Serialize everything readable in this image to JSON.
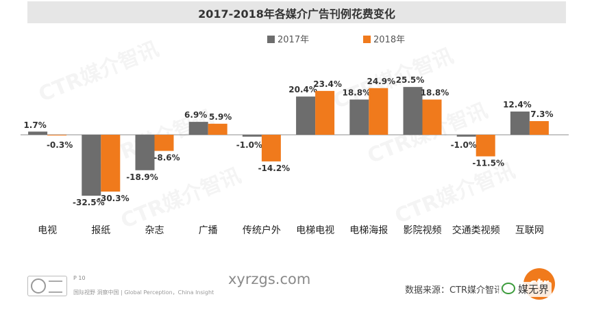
{
  "chart_data": {
    "type": "bar",
    "title": "2017-2018年各媒介广告刊例花费变化",
    "categories": [
      "电视",
      "报纸",
      "杂志",
      "广播",
      "传统户外",
      "电梯电视",
      "电梯海报",
      "影院视频",
      "交通类视频",
      "互联网"
    ],
    "series": [
      {
        "name": "2017年",
        "values": [
          1.7,
          -32.5,
          -18.9,
          6.9,
          -1.0,
          20.4,
          18.8,
          25.5,
          -1.0,
          12.4
        ]
      },
      {
        "name": "2018年",
        "values": [
          -0.3,
          -30.3,
          -8.6,
          5.9,
          -14.2,
          23.4,
          24.9,
          18.8,
          -11.5,
          7.3
        ]
      }
    ],
    "data_labels": [
      [
        "1.7%",
        "-32.5%",
        "-18.9%",
        "6.9%",
        "-1.0%",
        "20.4%",
        "18.8%",
        "25.5%",
        "-1.0%",
        "12.4%"
      ],
      [
        "-0.3%",
        "-30.3%",
        "-8.6%",
        "5.9%",
        "-14.2%",
        "23.4%",
        "24.9%",
        "18.8%",
        "-11.5%",
        "7.3%"
      ]
    ],
    "ylim": [
      -36,
      28
    ],
    "legend_position": "top-center",
    "grid": false
  },
  "colors": {
    "series_2017": "#6d6d6d",
    "series_2018": "#f07a1c",
    "axis": "#8c8c8c",
    "label": "#333333"
  },
  "watermark_text": "CTR媒介智讯",
  "footer": {
    "page": "P 10",
    "slogan": "国际视野  洞察中国 | Global Perception，China Insight",
    "url": "xyrzgs.com",
    "source": "数据来源：CTR媒介智讯",
    "logo_text": "ctr",
    "wechat_name": "媒无界"
  }
}
